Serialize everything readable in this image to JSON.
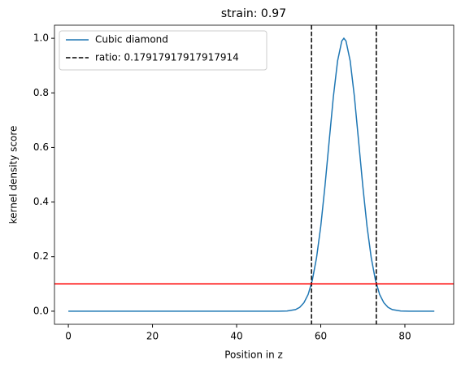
{
  "chart_data": {
    "type": "line",
    "title": "strain: 0.97",
    "xlabel": "Position in z",
    "ylabel": "kernel density score",
    "x": [
      0,
      10,
      20,
      30,
      40,
      45,
      50,
      52,
      54,
      55,
      56,
      57,
      58,
      59,
      60,
      61,
      62,
      63,
      64,
      65,
      65.5,
      66,
      67,
      68,
      69,
      70,
      71,
      72,
      73,
      74,
      75,
      76,
      77,
      79,
      81,
      87
    ],
    "series": [
      {
        "name": "Cubic diamond",
        "color": "#1f77b4",
        "values": [
          0,
          0,
          0,
          0,
          0,
          0,
          0,
          0.0009,
          0.006,
          0.014,
          0.031,
          0.061,
          0.114,
          0.196,
          0.311,
          0.458,
          0.623,
          0.786,
          0.917,
          0.99,
          1.0,
          0.99,
          0.917,
          0.786,
          0.623,
          0.458,
          0.311,
          0.196,
          0.114,
          0.061,
          0.031,
          0.014,
          0.006,
          0.0009,
          0,
          0
        ]
      }
    ],
    "vlines": {
      "name": "ratio: 0.17917917917917914",
      "color": "#000000",
      "values": [
        57.8,
        73.2
      ]
    },
    "hline": {
      "color": "#ff0000",
      "value": 0.1
    },
    "xlim": [
      -3.3,
      91.6
    ],
    "xticks": [
      0,
      20,
      40,
      60,
      80
    ],
    "ylim": [
      -0.048,
      1.048
    ],
    "yticks": [
      {
        "value": 0,
        "label": "0.0"
      },
      0.2,
      0.4,
      0.6,
      0.8,
      {
        "value": 1,
        "label": "1.0"
      }
    ],
    "legend": "upper left"
  }
}
